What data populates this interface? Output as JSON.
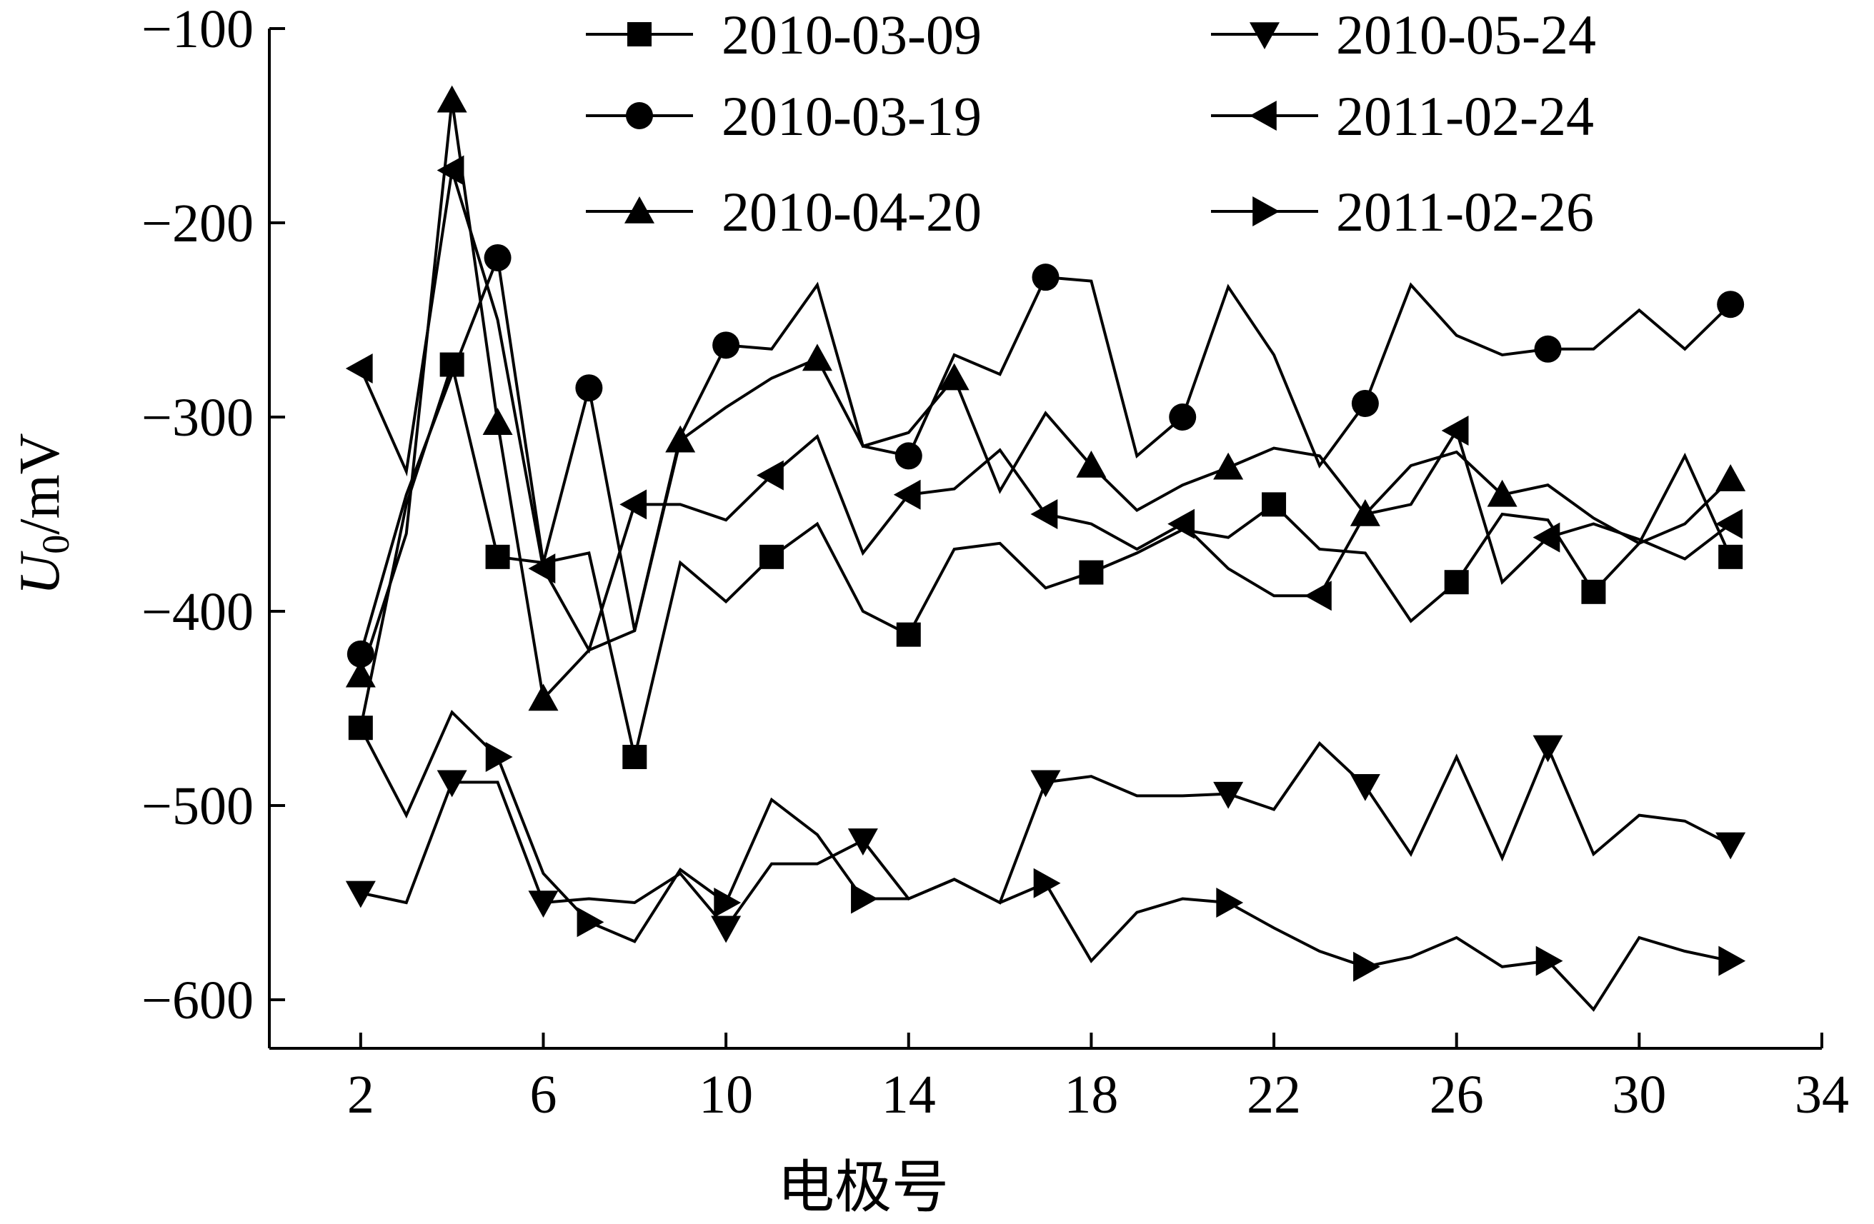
{
  "chart_data": {
    "type": "line",
    "xlabel": "电极号",
    "ylabel": "U0/mV",
    "ylabel_main": "U",
    "ylabel_sub": "0",
    "ylabel_unit": "/mV",
    "xlim": [
      0,
      34
    ],
    "ylim": [
      -625,
      -100
    ],
    "xticks": [
      2,
      6,
      10,
      14,
      18,
      22,
      26,
      30,
      34
    ],
    "yticks": [
      -100,
      -200,
      -300,
      -400,
      -500,
      -600
    ],
    "xtick_labels": [
      "2",
      "6",
      "10",
      "14",
      "18",
      "22",
      "26",
      "30",
      "34"
    ],
    "ytick_labels": [
      "−100",
      "−200",
      "−300",
      "−400",
      "−500",
      "−600"
    ],
    "grid": false,
    "legend_position": "top",
    "x": [
      2,
      3,
      4,
      5,
      6,
      7,
      8,
      9,
      10,
      11,
      12,
      13,
      14,
      15,
      16,
      17,
      18,
      19,
      20,
      21,
      22,
      23,
      24,
      25,
      26,
      27,
      28,
      29,
      30,
      31,
      32
    ],
    "series": [
      {
        "name": "2010-03-09",
        "marker": "square",
        "values": [
          -460,
          -345,
          -273,
          -372,
          -375,
          -370,
          -475,
          -375,
          -395,
          -372,
          -355,
          -400,
          -412,
          -368,
          -365,
          -388,
          -380,
          -370,
          -358,
          -362,
          -345,
          -368,
          -370,
          -405,
          -385,
          -350,
          -353,
          -390,
          -365,
          -320,
          -372
        ],
        "marker_x": [
          2,
          4,
          5,
          8,
          11,
          14,
          18,
          22,
          26,
          29,
          32
        ]
      },
      {
        "name": "2010-03-19",
        "marker": "circle",
        "values": [
          -422,
          -340,
          -278,
          -218,
          -375,
          -285,
          -410,
          -310,
          -263,
          -265,
          -232,
          -315,
          -320,
          -268,
          -278,
          -228,
          -230,
          -320,
          -300,
          -233,
          -268,
          -325,
          -293,
          -232,
          -258,
          -268,
          -265,
          -265,
          -245,
          -265,
          -242
        ],
        "marker_x": [
          2,
          5,
          7,
          10,
          14,
          17,
          20,
          24,
          28,
          32
        ]
      },
      {
        "name": "2010-04-20",
        "marker": "triangle-up",
        "values": [
          -433,
          -360,
          -137,
          -303,
          -445,
          -420,
          -410,
          -312,
          -295,
          -280,
          -270,
          -315,
          -308,
          -280,
          -338,
          -298,
          -325,
          -348,
          -335,
          -326,
          -316,
          -320,
          -350,
          -325,
          -318,
          -340,
          -335,
          -352,
          -365,
          -355,
          -332
        ],
        "marker_x": [
          2,
          4,
          5,
          6,
          9,
          12,
          15,
          18,
          21,
          24,
          27,
          32
        ]
      },
      {
        "name": "2010-05-24",
        "marker": "triangle-down",
        "values": [
          -545,
          -550,
          -488,
          -488,
          -550,
          -548,
          -550,
          -535,
          -563,
          -530,
          -530,
          -518,
          -548,
          -538,
          -550,
          -488,
          -485,
          -495,
          -495,
          -494,
          -502,
          -468,
          -490,
          -525,
          -475,
          -527,
          -470,
          -525,
          -505,
          -508,
          -520
        ],
        "marker_x": [
          2,
          4,
          6,
          10,
          13,
          17,
          21,
          24,
          28,
          32
        ]
      },
      {
        "name": "2011-02-24",
        "marker": "triangle-left",
        "values": [
          -275,
          -328,
          -173,
          -250,
          -378,
          -420,
          -345,
          -345,
          -353,
          -330,
          -310,
          -370,
          -340,
          -337,
          -317,
          -350,
          -355,
          -368,
          -355,
          -378,
          -392,
          -392,
          -350,
          -345,
          -307,
          -385,
          -362,
          -355,
          -363,
          -373,
          -355
        ],
        "marker_x": [
          2,
          4,
          6,
          8,
          11,
          14,
          17,
          20,
          23,
          26,
          28,
          32
        ]
      },
      {
        "name": "2011-02-26",
        "marker": "triangle-right",
        "values": [
          -460,
          -505,
          -452,
          -475,
          -535,
          -560,
          -570,
          -533,
          -550,
          -497,
          -515,
          -548,
          -548,
          -538,
          -550,
          -540,
          -580,
          -555,
          -548,
          -550,
          -563,
          -575,
          -583,
          -578,
          -568,
          -583,
          -580,
          -605,
          -568,
          -575,
          -580
        ],
        "marker_x": [
          5,
          7,
          10,
          13,
          17,
          21,
          24,
          28,
          32
        ]
      }
    ]
  },
  "colors": {
    "line": "#000000",
    "background": "#ffffff"
  }
}
